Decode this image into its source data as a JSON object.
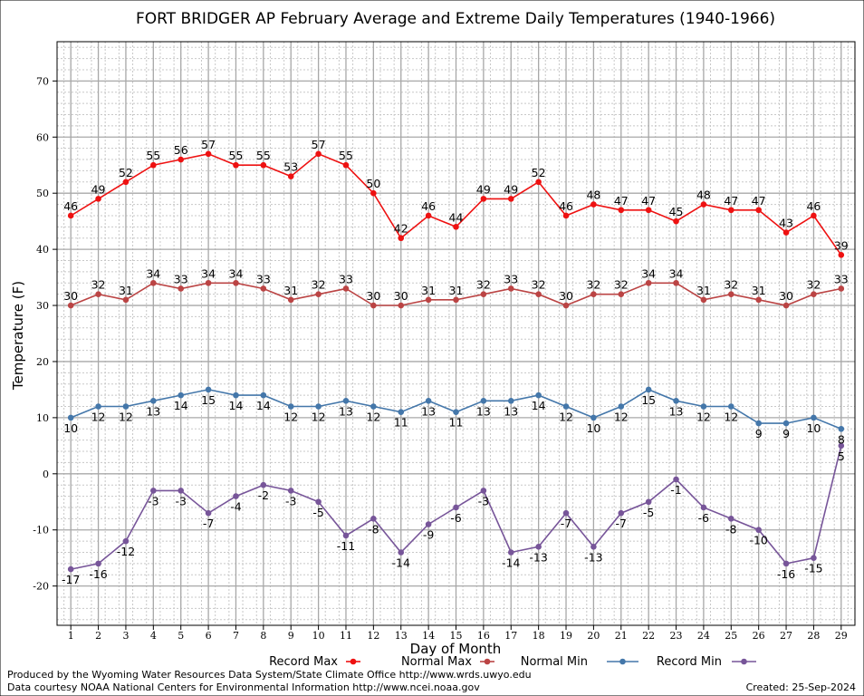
{
  "chart_data": {
    "type": "line",
    "title": "FORT BRIDGER AP February Average and Extreme Daily Temperatures (1940-1966)",
    "xlabel": "Day of Month",
    "ylabel": "Temperature (F)",
    "x": [
      1,
      2,
      3,
      4,
      5,
      6,
      7,
      8,
      9,
      10,
      11,
      12,
      13,
      14,
      15,
      16,
      17,
      18,
      19,
      20,
      21,
      22,
      23,
      24,
      25,
      26,
      27,
      28,
      29
    ],
    "xlim": [
      0.5,
      29.5
    ],
    "ylim": [
      -27,
      77
    ],
    "yticks": [
      -20,
      -10,
      0,
      10,
      20,
      30,
      40,
      50,
      60,
      70
    ],
    "grid": true,
    "legend_position": "bottom",
    "series": [
      {
        "name": "Record Max",
        "color": "#ee1111",
        "values": [
          46,
          49,
          52,
          55,
          56,
          57,
          55,
          55,
          53,
          57,
          55,
          50,
          42,
          46,
          44,
          49,
          49,
          52,
          46,
          48,
          47,
          47,
          45,
          48,
          47,
          47,
          43,
          46,
          39
        ]
      },
      {
        "name": "Normal Max",
        "color": "#bb4444",
        "values": [
          30,
          32,
          31,
          34,
          33,
          34,
          34,
          33,
          31,
          32,
          33,
          30,
          30,
          31,
          31,
          32,
          33,
          32,
          30,
          32,
          32,
          34,
          34,
          31,
          32,
          31,
          30,
          32,
          33
        ]
      },
      {
        "name": "Normal Min",
        "color": "#4477aa",
        "values": [
          10,
          12,
          12,
          13,
          14,
          15,
          14,
          14,
          12,
          12,
          13,
          12,
          11,
          13,
          11,
          13,
          13,
          14,
          12,
          10,
          12,
          15,
          13,
          12,
          12,
          9,
          9,
          10,
          8
        ]
      },
      {
        "name": "Record Min",
        "color": "#775599",
        "values": [
          -17,
          -16,
          -12,
          -3,
          -3,
          -7,
          -4,
          -2,
          -3,
          -5,
          -11,
          -8,
          -14,
          -9,
          -6,
          -3,
          -14,
          -13,
          -7,
          -13,
          -7,
          -5,
          -1,
          -6,
          -8,
          -10,
          -16,
          -15,
          5
        ]
      }
    ]
  },
  "footer": {
    "producer": "Produced by the Wyoming Water Resources Data System/State Climate Office http://www.wrds.uwyo.edu",
    "courtesy": "Data courtesy NOAA National Centers for Environmental Information http://www.ncei.noaa.gov",
    "created": "Created: 25-Sep-2024"
  }
}
